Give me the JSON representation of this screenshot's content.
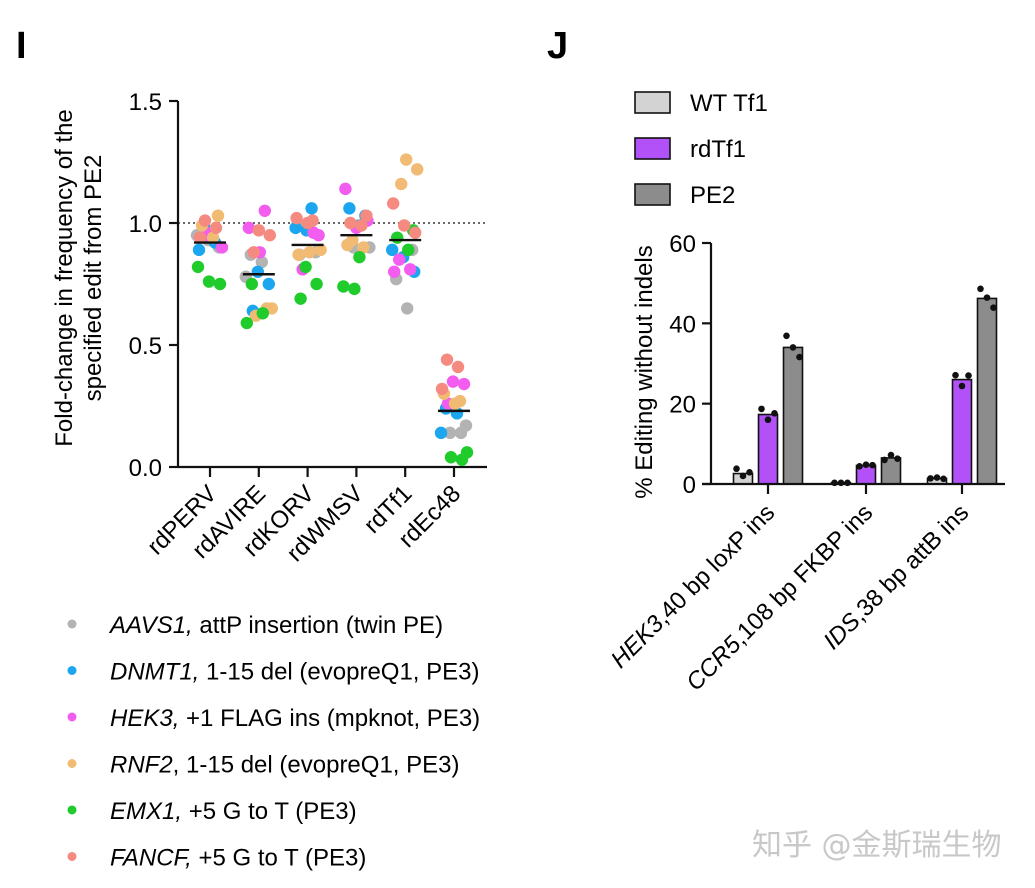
{
  "panels": {
    "I": {
      "letter": "I"
    },
    "J": {
      "letter": "J"
    }
  },
  "watermark": "知乎 @金斯瑞生物",
  "chart_data": [
    {
      "id": "panel-I",
      "type": "scatter",
      "title": "",
      "ylabel_lines": [
        "Fold-change in frequency of the",
        "specified edit from PE2"
      ],
      "xlabel": "",
      "ylim": [
        0,
        1.5
      ],
      "yticks": [
        0.0,
        0.5,
        1.0,
        1.5
      ],
      "ytick_labels": [
        "0.0",
        "0.5",
        "1.0",
        "1.5"
      ],
      "reference_line": {
        "y": 1.0,
        "style": "dotted"
      },
      "categories": [
        "rdPERV",
        "rdAVIRE",
        "rdKORV",
        "rdWMSV",
        "rdTf1",
        "rdEc48"
      ],
      "legend_position": "bottom",
      "series": [
        {
          "name": "AAVS1",
          "italic": "AAVS1,",
          "rest": " attP insertion (twin PE)",
          "color": "#b3b3b3",
          "values": [
            [
              0.95,
              0.93,
              0.9
            ],
            [
              0.87,
              0.84,
              0.78
            ],
            [
              0.99,
              0.88,
              0.87
            ],
            [
              0.99,
              0.9,
              0.9
            ],
            [
              0.89,
              0.77,
              0.65
            ],
            [
              0.17,
              0.14,
              0.14
            ]
          ]
        },
        {
          "name": "DNMT1",
          "italic": "DNMT1,",
          "rest": " 1-15 del (evopreQ1, PE3)",
          "color": "#1ba6ef",
          "values": [
            [
              0.99,
              0.92,
              0.89
            ],
            [
              0.8,
              0.75,
              0.64
            ],
            [
              1.06,
              0.98,
              0.97
            ],
            [
              1.03,
              1.06,
              0.99
            ],
            [
              0.89,
              0.86,
              0.8
            ],
            [
              0.24,
              0.22,
              0.14
            ]
          ]
        },
        {
          "name": "HEK3",
          "italic": "HEK3,",
          "rest": " +1 FLAG ins (mpknot, PE3)",
          "color": "#f25cef",
          "values": [
            [
              0.96,
              0.9,
              0.95
            ],
            [
              1.05,
              0.98,
              0.88
            ],
            [
              0.95,
              0.81,
              0.96
            ],
            [
              1.14,
              0.98,
              1.01
            ],
            [
              0.85,
              0.81,
              0.8
            ],
            [
              0.35,
              0.34,
              0.26
            ]
          ]
        },
        {
          "name": "RNF2",
          "italic": "RNF2",
          "rest": ", 1-15 del (evopreQ1, PE3)",
          "color": "#f2bb73",
          "values": [
            [
              1.03,
              0.99,
              0.94
            ],
            [
              0.65,
              0.62,
              0.65
            ],
            [
              0.87,
              0.88,
              0.89
            ],
            [
              0.93,
              0.9,
              0.91
            ],
            [
              1.26,
              1.22,
              1.16
            ],
            [
              0.27,
              0.3,
              0.26
            ]
          ]
        },
        {
          "name": "EMX1",
          "italic": "EMX1,",
          "rest": " +5 G to T (PE3)",
          "color": "#1fcc2c",
          "values": [
            [
              0.82,
              0.76,
              0.75
            ],
            [
              0.75,
              0.63,
              0.59
            ],
            [
              0.82,
              0.75,
              0.69
            ],
            [
              0.86,
              0.74,
              0.73
            ],
            [
              0.97,
              0.94,
              0.89
            ],
            [
              0.06,
              0.04,
              0.03
            ]
          ]
        },
        {
          "name": "FANCF",
          "italic": "FANCF,",
          "rest": " +5 G to T (PE3)",
          "color": "#f58a80",
          "values": [
            [
              1.01,
              0.98,
              0.94
            ],
            [
              0.97,
              0.95,
              0.88
            ],
            [
              1.01,
              1.02,
              1.0
            ],
            [
              1.03,
              1.0,
              0.99
            ],
            [
              1.08,
              0.99,
              0.96
            ],
            [
              0.44,
              0.41,
              0.32
            ]
          ]
        }
      ],
      "medians": [
        0.92,
        0.79,
        0.91,
        0.95,
        0.93,
        0.23
      ]
    },
    {
      "id": "panel-J",
      "type": "bar",
      "title": "",
      "ylabel": "% Editing without indels",
      "xlabel": "",
      "ylim": [
        0,
        60
      ],
      "yticks": [
        0,
        20,
        40,
        60
      ],
      "ytick_labels": [
        "0",
        "20",
        "40",
        "60"
      ],
      "categories": [
        {
          "italic": "HEK3",
          "rest": ",40 bp loxP ins"
        },
        {
          "italic": "CCR5",
          "rest": ",108 bp FKBP ins"
        },
        {
          "italic": "IDS",
          "rest": ",38 bp attB ins"
        }
      ],
      "legend_position": "top-left",
      "series": [
        {
          "name": "WT Tf1",
          "color": "#d3d3d3",
          "values": [
            2.6,
            0.3,
            1.4
          ],
          "replicates": [
            [
              3.8,
              2.0,
              2.9
            ],
            [
              0.3,
              0.3,
              0.3
            ],
            [
              1.4,
              1.6,
              1.3
            ]
          ]
        },
        {
          "name": "rdTf1",
          "color": "#b151f7",
          "values": [
            17.3,
            4.6,
            26.0
          ],
          "replicates": [
            [
              18.7,
              16.0,
              17.6
            ],
            [
              4.4,
              4.8,
              4.7
            ],
            [
              27.1,
              24.4,
              27.0
            ]
          ]
        },
        {
          "name": "PE2",
          "color": "#8c8c8c",
          "values": [
            34.0,
            6.5,
            46.2
          ],
          "replicates": [
            [
              36.9,
              34.0,
              31.6
            ],
            [
              6.0,
              7.2,
              6.3
            ],
            [
              48.6,
              46.4,
              43.9
            ]
          ]
        }
      ]
    }
  ]
}
